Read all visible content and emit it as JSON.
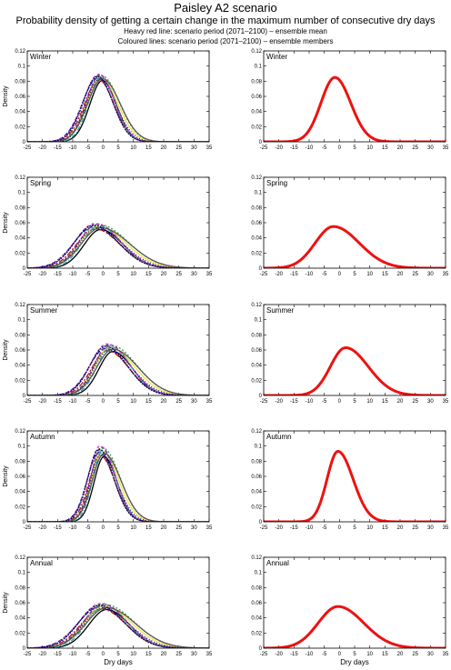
{
  "header": {
    "title": "Paisley A2 scenario",
    "subtitle": "Probability density of getting a certain change in the maximum number of consecutive dry days",
    "note1": "Heavy red line: scenario period (2071–2100) – ensemble mean",
    "note2": "Coloured lines: scenario period (2071–2100) – ensemble members"
  },
  "colors": {
    "mean": "#ee1111",
    "members": [
      "#000000",
      "#1a1aa0",
      "#3aa03a",
      "#b81818",
      "#e8e840",
      "#7a20a0",
      "#111166",
      "#33a0a0",
      "#cc33cc",
      "#555555",
      "#0a0a55"
    ]
  },
  "chart_data": [
    {
      "type": "line",
      "panel": "left",
      "label": "Winter",
      "ylabel": "Density",
      "xlabel": "",
      "xlim": [
        -25,
        35
      ],
      "ylim": [
        0,
        0.12
      ],
      "xticks": [
        "-25",
        "-20",
        "-15",
        "-10",
        "-5",
        "0",
        "5",
        "10",
        "15",
        "20",
        "25",
        "30",
        "35"
      ],
      "yticks": [
        "0",
        "0.02",
        "0.04",
        "0.06",
        "0.08",
        "0.1",
        "0.12"
      ],
      "series": [
        {
          "type": "members",
          "count": 11,
          "center": -1,
          "sd_left": 4.6,
          "sd_right": 5.2,
          "peak": 0.085,
          "spread_center": 1.0,
          "spread_peak": 0.004
        }
      ]
    },
    {
      "type": "line",
      "panel": "right",
      "label": "Winter",
      "ylabel": "",
      "xlabel": "",
      "xlim": [
        -25,
        35
      ],
      "ylim": [
        0,
        0.12
      ],
      "xticks": [
        "-25",
        "-20",
        "-15",
        "-10",
        "-5",
        "0",
        "5",
        "10",
        "15",
        "20",
        "25",
        "30",
        "35"
      ],
      "yticks": [
        "0",
        "0.02",
        "0.04",
        "0.06",
        "0.08",
        "0.1",
        "0.12"
      ],
      "series": [
        {
          "type": "mean",
          "center": -1.5,
          "sd_left": 4.6,
          "sd_right": 5.2,
          "peak": 0.085
        }
      ]
    },
    {
      "type": "line",
      "panel": "left",
      "label": "Spring",
      "ylabel": "Density",
      "xlabel": "",
      "xlim": [
        -25,
        35
      ],
      "ylim": [
        0,
        0.12
      ],
      "xticks": [
        "-25",
        "-20",
        "-15",
        "-10",
        "-5",
        "0",
        "5",
        "10",
        "15",
        "20",
        "25",
        "30",
        "35"
      ],
      "yticks": [
        "0",
        "0.02",
        "0.04",
        "0.06",
        "0.08",
        "0.1",
        "0.12"
      ],
      "series": [
        {
          "type": "members",
          "count": 11,
          "center": -2,
          "sd_left": 6.0,
          "sd_right": 8.5,
          "peak": 0.055,
          "spread_center": 1.5,
          "spread_peak": 0.004
        }
      ]
    },
    {
      "type": "line",
      "panel": "right",
      "label": "Spring",
      "ylabel": "",
      "xlabel": "",
      "xlim": [
        -25,
        35
      ],
      "ylim": [
        0,
        0.12
      ],
      "xticks": [
        "-25",
        "-20",
        "-15",
        "-10",
        "-5",
        "0",
        "5",
        "10",
        "15",
        "20",
        "25",
        "30",
        "35"
      ],
      "yticks": [
        "0",
        "0.02",
        "0.04",
        "0.06",
        "0.08",
        "0.1",
        "0.12"
      ],
      "series": [
        {
          "type": "mean",
          "center": -2,
          "sd_left": 6.0,
          "sd_right": 8.5,
          "peak": 0.055
        }
      ]
    },
    {
      "type": "line",
      "panel": "left",
      "label": "Summer",
      "ylabel": "Density",
      "xlabel": "",
      "xlim": [
        -25,
        35
      ],
      "ylim": [
        0,
        0.12
      ],
      "xticks": [
        "-25",
        "-20",
        "-15",
        "-10",
        "-5",
        "0",
        "5",
        "10",
        "15",
        "20",
        "25",
        "30",
        "35"
      ],
      "yticks": [
        "0",
        "0.02",
        "0.04",
        "0.06",
        "0.08",
        "0.1",
        "0.12"
      ],
      "series": [
        {
          "type": "members",
          "count": 11,
          "center": 2,
          "sd_left": 5.0,
          "sd_right": 7.5,
          "peak": 0.063,
          "spread_center": 1.5,
          "spread_peak": 0.005
        }
      ]
    },
    {
      "type": "line",
      "panel": "right",
      "label": "Summer",
      "ylabel": "",
      "xlabel": "",
      "xlim": [
        -25,
        35
      ],
      "ylim": [
        0,
        0.12
      ],
      "xticks": [
        "-25",
        "-20",
        "-15",
        "-10",
        "-5",
        "0",
        "5",
        "10",
        "15",
        "20",
        "25",
        "30",
        "35"
      ],
      "yticks": [
        "0",
        "0.02",
        "0.04",
        "0.06",
        "0.08",
        "0.1",
        "0.12"
      ],
      "series": [
        {
          "type": "mean",
          "center": 2,
          "sd_left": 5.0,
          "sd_right": 7.5,
          "peak": 0.063
        }
      ]
    },
    {
      "type": "line",
      "panel": "left",
      "label": "Autumn",
      "ylabel": "Density",
      "xlabel": "",
      "xlim": [
        -25,
        35
      ],
      "ylim": [
        0,
        0.12
      ],
      "xticks": [
        "-25",
        "-20",
        "-15",
        "-10",
        "-5",
        "0",
        "5",
        "10",
        "15",
        "20",
        "25",
        "30",
        "35"
      ],
      "yticks": [
        "0",
        "0.02",
        "0.04",
        "0.06",
        "0.08",
        "0.1",
        "0.12"
      ],
      "series": [
        {
          "type": "members",
          "count": 11,
          "center": -0.5,
          "sd_left": 3.6,
          "sd_right": 5.0,
          "peak": 0.093,
          "spread_center": 1.0,
          "spread_peak": 0.007
        }
      ]
    },
    {
      "type": "line",
      "panel": "right",
      "label": "Autumn",
      "ylabel": "",
      "xlabel": "",
      "xlim": [
        -25,
        35
      ],
      "ylim": [
        0,
        0.12
      ],
      "xticks": [
        "-25",
        "-20",
        "-15",
        "-10",
        "-5",
        "0",
        "5",
        "10",
        "15",
        "20",
        "25",
        "30",
        "35"
      ],
      "yticks": [
        "0",
        "0.02",
        "0.04",
        "0.06",
        "0.08",
        "0.1",
        "0.12"
      ],
      "series": [
        {
          "type": "mean",
          "center": -0.5,
          "sd_left": 3.6,
          "sd_right": 5.0,
          "peak": 0.093
        }
      ]
    },
    {
      "type": "line",
      "panel": "left",
      "label": "Annual",
      "ylabel": "Density",
      "xlabel": "Dry days",
      "xlim": [
        -25,
        35
      ],
      "ylim": [
        0,
        0.12
      ],
      "xticks": [
        "-25",
        "-20",
        "-15",
        "-10",
        "-5",
        "0",
        "5",
        "10",
        "15",
        "20",
        "25",
        "30",
        "35"
      ],
      "yticks": [
        "0",
        "0.02",
        "0.04",
        "0.06",
        "0.08",
        "0.1",
        "0.12"
      ],
      "series": [
        {
          "type": "members",
          "count": 11,
          "center": 0,
          "sd_left": 6.5,
          "sd_right": 8.5,
          "peak": 0.055,
          "spread_center": 1.5,
          "spread_peak": 0.004
        }
      ]
    },
    {
      "type": "line",
      "panel": "right",
      "label": "Annual",
      "ylabel": "",
      "xlabel": "Dry days",
      "xlim": [
        -25,
        35
      ],
      "ylim": [
        0,
        0.12
      ],
      "xticks": [
        "-25",
        "-20",
        "-15",
        "-10",
        "-5",
        "0",
        "5",
        "10",
        "15",
        "20",
        "25",
        "30",
        "35"
      ],
      "yticks": [
        "0",
        "0.02",
        "0.04",
        "0.06",
        "0.08",
        "0.1",
        "0.12"
      ],
      "series": [
        {
          "type": "mean",
          "center": -0.5,
          "sd_left": 6.5,
          "sd_right": 8.5,
          "peak": 0.055
        }
      ]
    }
  ]
}
